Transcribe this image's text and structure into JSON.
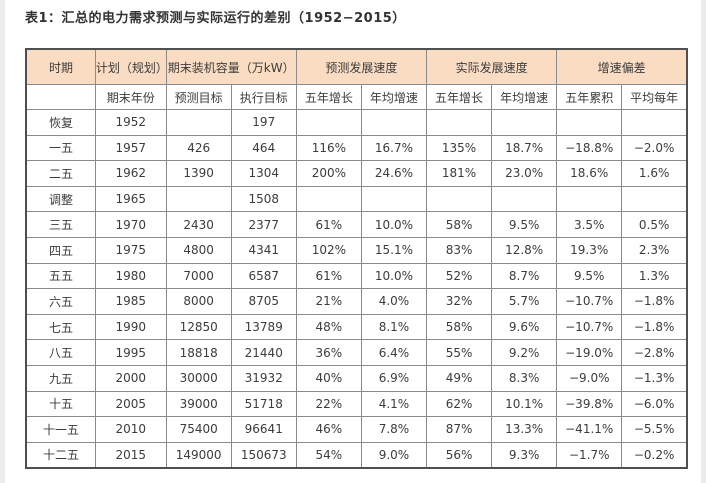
{
  "title": "表1：汇总的电力需求预测与实际运行的差别（1952−2015）",
  "colors": {
    "header_bg": "#f9dcc1",
    "grid_border": "#8a8a8a",
    "outer_border": "#4f4f4f",
    "text": "#3c3c3c"
  },
  "table": {
    "header_row1": [
      {
        "label": "时期",
        "colspan": 1
      },
      {
        "label": "计划（规划）",
        "colspan": 1
      },
      {
        "label": "期末装机容量（万kW）",
        "colspan": 2
      },
      {
        "label": "预测发展速度",
        "colspan": 2
      },
      {
        "label": "实际发展速度",
        "colspan": 2
      },
      {
        "label": "增速偏差",
        "colspan": 2
      }
    ],
    "header_row2": [
      "",
      "期末年份",
      "预测目标",
      "执行目标",
      "五年增长",
      "年均增速",
      "五年增长",
      "年均增速",
      "五年累积",
      "平均每年"
    ],
    "rows": [
      [
        "恢复",
        "1952",
        "",
        "197",
        "",
        "",
        "",
        "",
        "",
        ""
      ],
      [
        "一五",
        "1957",
        "426",
        "464",
        "116%",
        "16.7%",
        "135%",
        "18.7%",
        "−18.8%",
        "−2.0%"
      ],
      [
        "二五",
        "1962",
        "1390",
        "1304",
        "200%",
        "24.6%",
        "181%",
        "23.0%",
        "18.6%",
        "1.6%"
      ],
      [
        "调整",
        "1965",
        "",
        "1508",
        "",
        "",
        "",
        "",
        "",
        ""
      ],
      [
        "三五",
        "1970",
        "2430",
        "2377",
        "61%",
        "10.0%",
        "58%",
        "9.5%",
        "3.5%",
        "0.5%"
      ],
      [
        "四五",
        "1975",
        "4800",
        "4341",
        "102%",
        "15.1%",
        "83%",
        "12.8%",
        "19.3%",
        "2.3%"
      ],
      [
        "五五",
        "1980",
        "7000",
        "6587",
        "61%",
        "10.0%",
        "52%",
        "8.7%",
        "9.5%",
        "1.3%"
      ],
      [
        "六五",
        "1985",
        "8000",
        "8705",
        "21%",
        "4.0%",
        "32%",
        "5.7%",
        "−10.7%",
        "−1.8%"
      ],
      [
        "七五",
        "1990",
        "12850",
        "13789",
        "48%",
        "8.1%",
        "58%",
        "9.6%",
        "−10.7%",
        "−1.8%"
      ],
      [
        "八五",
        "1995",
        "18818",
        "21440",
        "36%",
        "6.4%",
        "55%",
        "9.2%",
        "−19.0%",
        "−2.8%"
      ],
      [
        "九五",
        "2000",
        "30000",
        "31932",
        "40%",
        "6.9%",
        "49%",
        "8.3%",
        "−9.0%",
        "−1.3%"
      ],
      [
        "十五",
        "2005",
        "39000",
        "51718",
        "22%",
        "4.1%",
        "62%",
        "10.1%",
        "−39.8%",
        "−6.0%"
      ],
      [
        "十一五",
        "2010",
        "75400",
        "96641",
        "46%",
        "7.8%",
        "87%",
        "13.3%",
        "−41.1%",
        "−5.5%"
      ],
      [
        "十二五",
        "2015",
        "149000",
        "150673",
        "54%",
        "9.0%",
        "56%",
        "9.3%",
        "−1.7%",
        "−0.2%"
      ]
    ],
    "col_widths_pct": [
      10.5,
      10.7,
      9.85,
      9.85,
      9.85,
      9.85,
      9.85,
      9.85,
      9.85,
      9.85
    ]
  }
}
